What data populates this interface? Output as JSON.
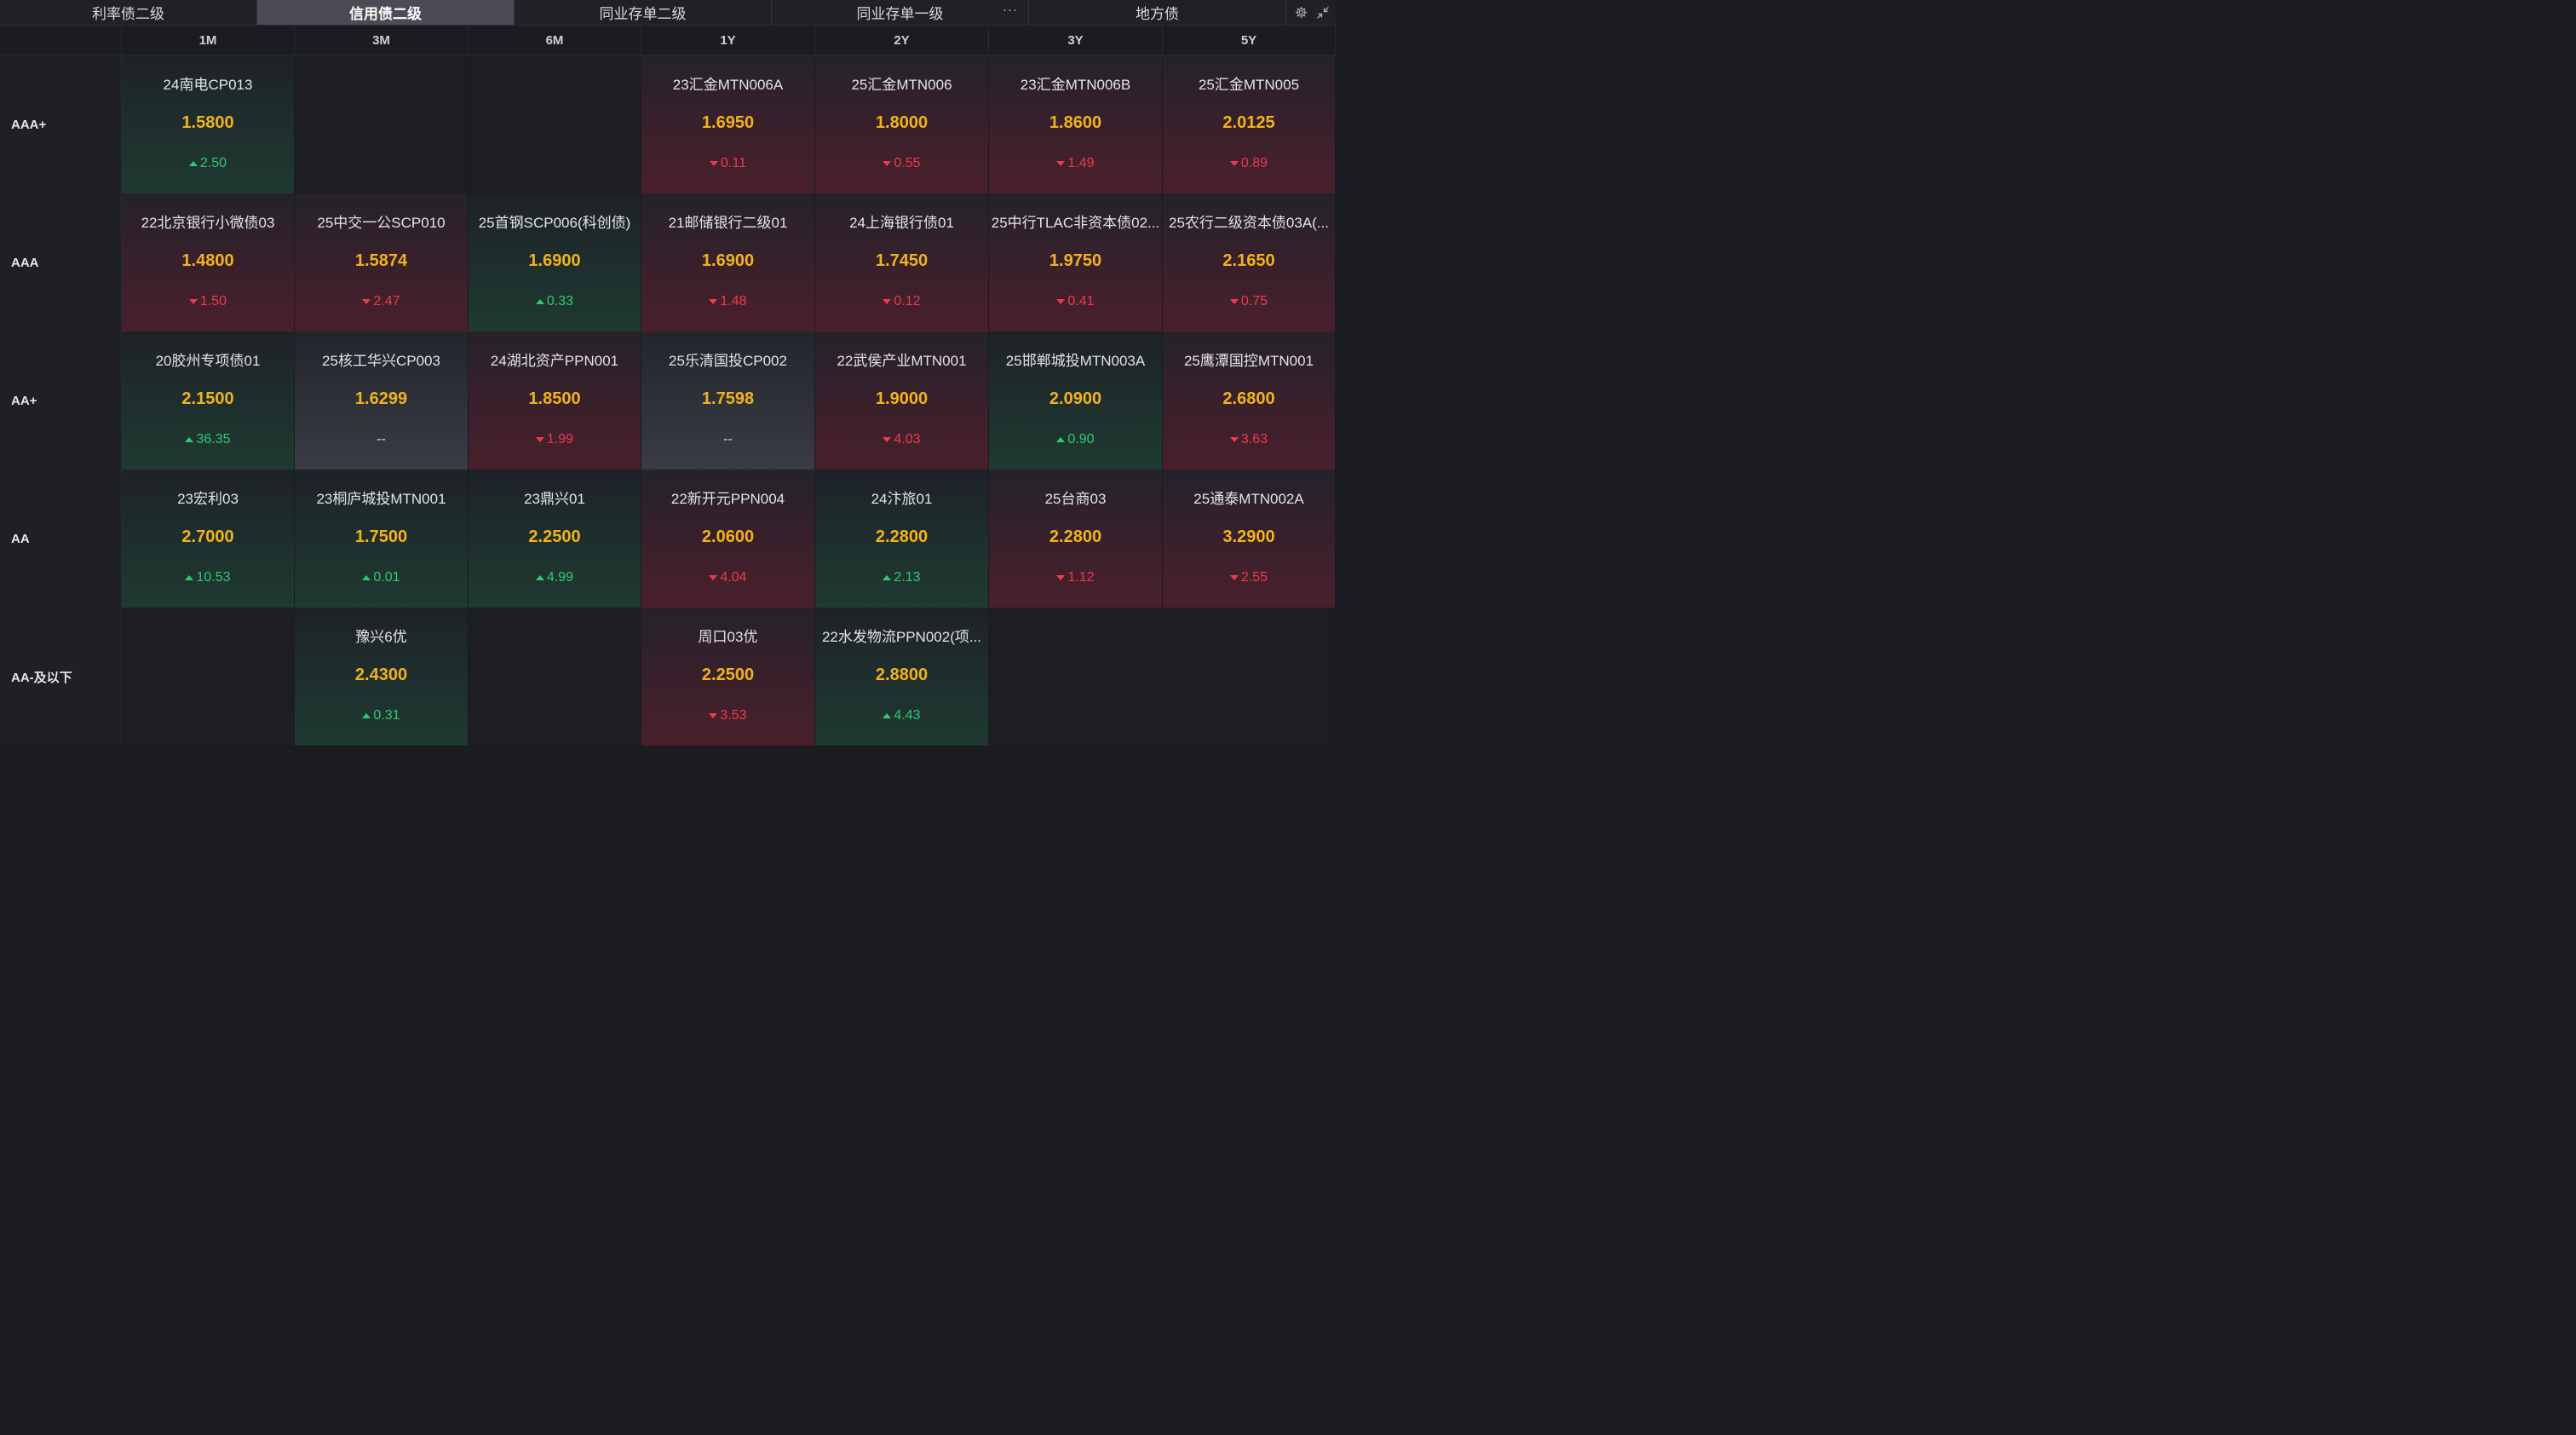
{
  "tabs": [
    {
      "label": "利率债二级",
      "active": false,
      "more": ""
    },
    {
      "label": "信用债二级",
      "active": true,
      "more": ""
    },
    {
      "label": "同业存单二级",
      "active": false,
      "more": ""
    },
    {
      "label": "同业存单一级",
      "active": false,
      "more": "···"
    },
    {
      "label": "地方债",
      "active": false,
      "more": ""
    }
  ],
  "toolbar": {
    "settings_icon": "gear-icon",
    "collapse_icon": "collapse-icon"
  },
  "columns": [
    "1M",
    "3M",
    "6M",
    "1Y",
    "2Y",
    "3Y",
    "5Y"
  ],
  "colors": {
    "up": "#2fc978",
    "down": "#ef3a4d",
    "value": "#f2b21f"
  },
  "rows": [
    {
      "rating": "AAA+",
      "cells": [
        {
          "name": "24南电CP013",
          "value": "1.5800",
          "change": "2.50",
          "dir": "up"
        },
        null,
        null,
        {
          "name": "23汇金MTN006A",
          "value": "1.6950",
          "change": "0.11",
          "dir": "down"
        },
        {
          "name": "25汇金MTN006",
          "value": "1.8000",
          "change": "0.55",
          "dir": "down"
        },
        {
          "name": "23汇金MTN006B",
          "value": "1.8600",
          "change": "1.49",
          "dir": "down"
        },
        {
          "name": "25汇金MTN005",
          "value": "2.0125",
          "change": "0.89",
          "dir": "down"
        }
      ]
    },
    {
      "rating": "AAA",
      "cells": [
        {
          "name": "22北京银行小微债03",
          "value": "1.4800",
          "change": "1.50",
          "dir": "down"
        },
        {
          "name": "25中交一公SCP010",
          "value": "1.5874",
          "change": "2.47",
          "dir": "down"
        },
        {
          "name": "25首钢SCP006(科创债)",
          "value": "1.6900",
          "change": "0.33",
          "dir": "up"
        },
        {
          "name": "21邮储银行二级01",
          "value": "1.6900",
          "change": "1.48",
          "dir": "down"
        },
        {
          "name": "24上海银行债01",
          "value": "1.7450",
          "change": "0.12",
          "dir": "down"
        },
        {
          "name": "25中行TLAC非资本债02...",
          "value": "1.9750",
          "change": "0.41",
          "dir": "down"
        },
        {
          "name": "25农行二级资本债03A(...",
          "value": "2.1650",
          "change": "0.75",
          "dir": "down"
        }
      ]
    },
    {
      "rating": "AA+",
      "cells": [
        {
          "name": "20胶州专项债01",
          "value": "2.1500",
          "change": "36.35",
          "dir": "up"
        },
        {
          "name": "25核工华兴CP003",
          "value": "1.6299",
          "change": "--",
          "dir": "flat"
        },
        {
          "name": "24湖北资产PPN001",
          "value": "1.8500",
          "change": "1.99",
          "dir": "down"
        },
        {
          "name": "25乐清国投CP002",
          "value": "1.7598",
          "change": "--",
          "dir": "flat"
        },
        {
          "name": "22武侯产业MTN001",
          "value": "1.9000",
          "change": "4.03",
          "dir": "down"
        },
        {
          "name": "25邯郸城投MTN003A",
          "value": "2.0900",
          "change": "0.90",
          "dir": "up"
        },
        {
          "name": "25鹰潭国控MTN001",
          "value": "2.6800",
          "change": "3.63",
          "dir": "down"
        }
      ]
    },
    {
      "rating": "AA",
      "cells": [
        {
          "name": "23宏利03",
          "value": "2.7000",
          "change": "10.53",
          "dir": "up"
        },
        {
          "name": "23桐庐城投MTN001",
          "value": "1.7500",
          "change": "0.01",
          "dir": "up"
        },
        {
          "name": "23鼎兴01",
          "value": "2.2500",
          "change": "4.99",
          "dir": "up"
        },
        {
          "name": "22新开元PPN004",
          "value": "2.0600",
          "change": "4.04",
          "dir": "down"
        },
        {
          "name": "24汴旅01",
          "value": "2.2800",
          "change": "2.13",
          "dir": "up"
        },
        {
          "name": "25台商03",
          "value": "2.2800",
          "change": "1.12",
          "dir": "down"
        },
        {
          "name": "25通泰MTN002A",
          "value": "3.2900",
          "change": "2.55",
          "dir": "down"
        }
      ]
    },
    {
      "rating": "AA-及以下",
      "cells": [
        null,
        {
          "name": "豫兴6优",
          "value": "2.4300",
          "change": "0.31",
          "dir": "up"
        },
        null,
        {
          "name": "周口03优",
          "value": "2.2500",
          "change": "3.53",
          "dir": "down"
        },
        {
          "name": "22水发物流PPN002(项...",
          "value": "2.8800",
          "change": "4.43",
          "dir": "up"
        },
        null,
        null
      ]
    }
  ]
}
